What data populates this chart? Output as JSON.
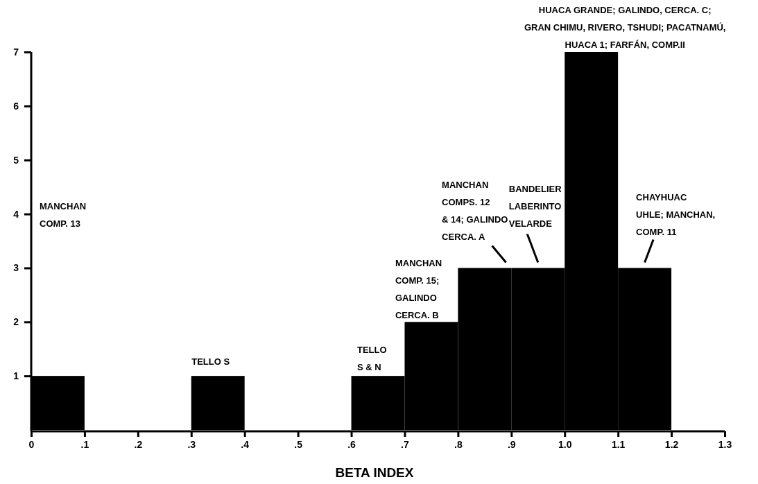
{
  "chart_data": {
    "type": "histogram",
    "xlabel": "BETA INDEX",
    "color": "#000000",
    "bins": [
      0,
      0.1,
      0.2,
      0.3,
      0.4,
      0.5,
      0.6,
      0.7,
      0.8,
      0.9,
      1.0,
      1.1,
      1.2,
      1.3
    ],
    "values": [
      1,
      0,
      0,
      1,
      0,
      0,
      1,
      2,
      3,
      3,
      7,
      3,
      0
    ],
    "xlim": [
      0,
      1.3
    ],
    "xticks": [
      0,
      {
        "value": 0.1,
        "label": ".1"
      },
      {
        "value": 0.2,
        "label": ".2"
      },
      {
        "value": 0.3,
        "label": ".3"
      },
      {
        "value": 0.4,
        "label": ".4"
      },
      {
        "value": 0.5,
        "label": ".5"
      },
      {
        "value": 0.6,
        "label": ".6"
      },
      {
        "value": 0.7,
        "label": ".7"
      },
      {
        "value": 0.8,
        "label": ".8"
      },
      {
        "value": 0.9,
        "label": ".9"
      },
      {
        "value": 1.0,
        "label": "1.0"
      },
      1.1,
      1.2,
      1.3
    ],
    "ylim": [
      0,
      7
    ],
    "yticks": [
      1,
      2,
      3,
      4,
      5,
      6,
      7
    ],
    "grid": false,
    "annotations": [
      "MANCHAN\nCOMP. 13",
      {
        "text": "TELLO S",
        "x": 0.35,
        "y": 1
      },
      {
        "text": "TELLO\nS & N",
        "x": 0.65,
        "y": 1
      },
      {
        "text": "MANCHAN\nCOMP. 15;\nGALINDO\nCERCA.  B",
        "x": 0.75,
        "y": 2
      },
      {
        "text": "MANCHAN\nCOMPS. 12\n& 14; GALINDO\nCERCA.  A",
        "x": 0.89,
        "y": 3
      },
      {
        "text": "BANDELIER\nLABERINTO\nVELARDE",
        "x": 0.95,
        "y": 3
      },
      {
        "text": "CHAYHUAC\nUHLE; MANCHAN,\nCOMP. 11",
        "x": 1.15,
        "y": 3
      },
      {
        "text": "HUACA GRANDE; GALINDO,  CERCA. C;\nGRAN CHIMU, RIVERO, TSHUDI;   PACATNAMÚ,\nHUACA 1;  FARFÁN, COMP.II",
        "x": 1.05,
        "y": 7
      }
    ]
  }
}
